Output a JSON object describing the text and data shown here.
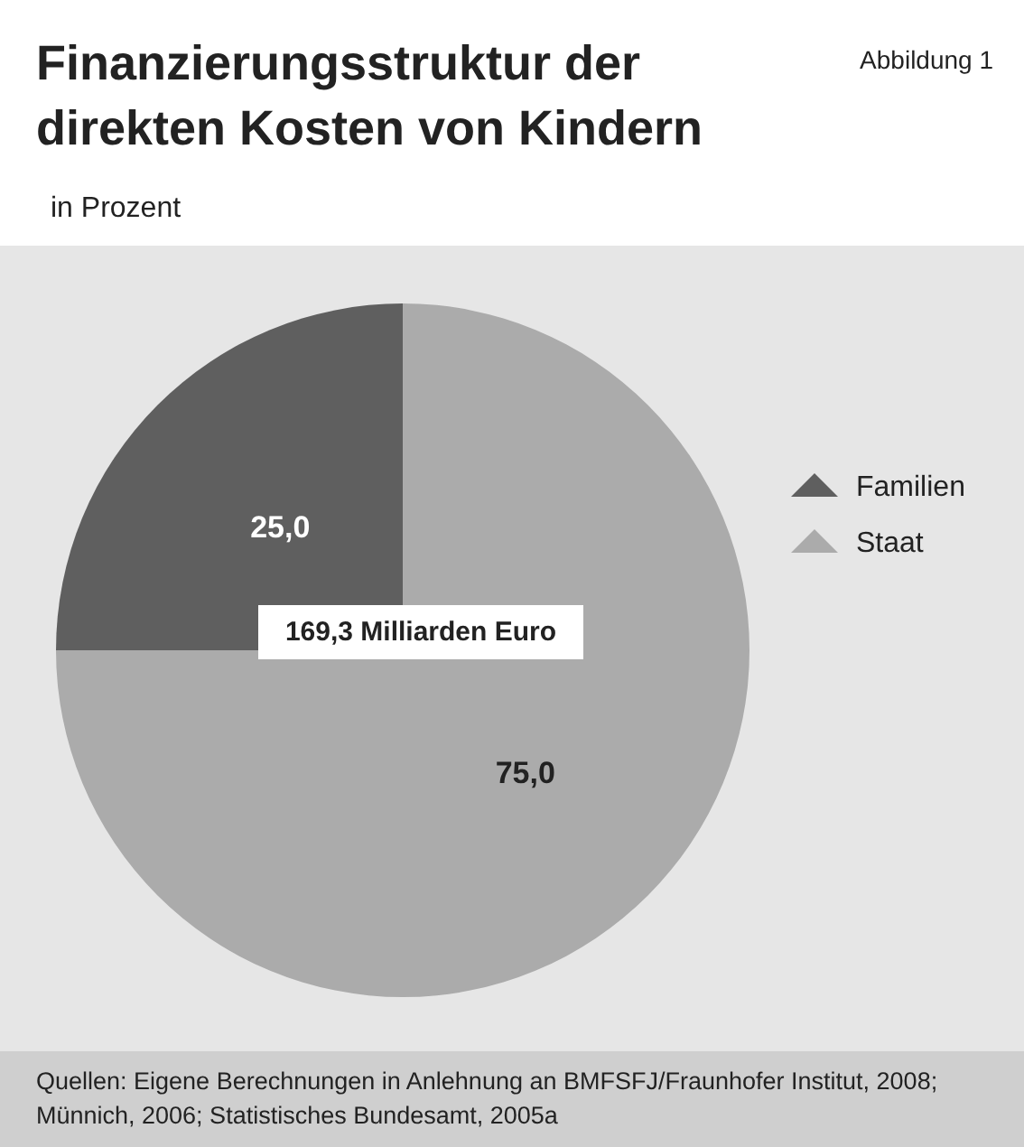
{
  "chart_data": {
    "type": "pie",
    "title": "Finanzierungsstruktur der direkten Kosten von Kindern",
    "subtitle": "in Prozent",
    "categories": [
      "Familien",
      "Staat"
    ],
    "values": [
      25,
      75
    ],
    "value_labels": [
      "25,0",
      "75,0"
    ],
    "colors": [
      "#5f5f5f",
      "#ababab"
    ],
    "legend": "right",
    "annotations": [
      "Abbildung 1",
      {
        "text": "169,3 Milliarden Euro"
      },
      "Quellen: Eigene Berechnungen in Anlehnung an BMFSFJ/Fraunhofer Institut, 2008; Münnich, 2006; Statistisches Bundesamt, 2005a"
    ]
  }
}
